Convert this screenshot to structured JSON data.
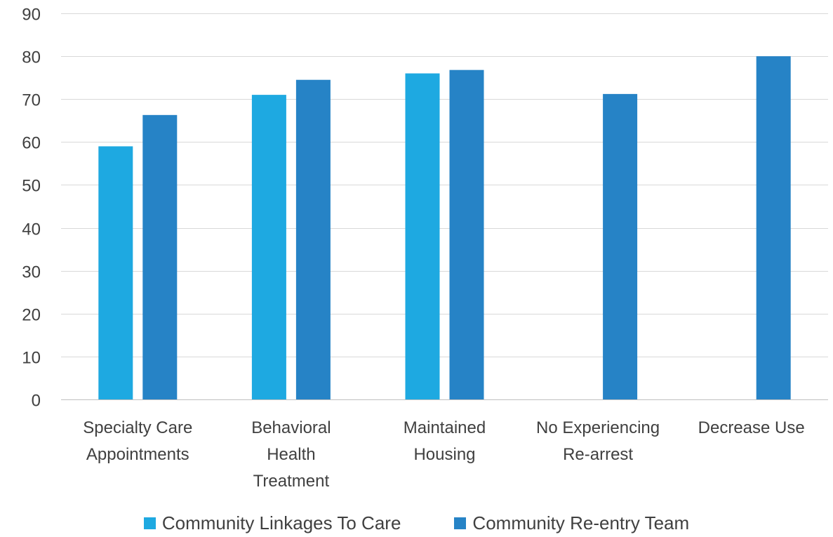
{
  "chart_data": {
    "type": "bar",
    "title": "",
    "xlabel": "",
    "ylabel": "",
    "ylim": [
      0,
      90
    ],
    "yticks": [
      0,
      10,
      20,
      30,
      40,
      50,
      60,
      70,
      80,
      90
    ],
    "grid": true,
    "legend_position": "bottom",
    "categories": [
      [
        "Specialty Care",
        "Appointments"
      ],
      [
        "Behavioral",
        "Health",
        "Treatment"
      ],
      [
        "Maintained",
        "Housing"
      ],
      [
        "No Experiencing",
        "Re-arrest"
      ],
      [
        "Decrease Use"
      ]
    ],
    "series": [
      {
        "name": "Community Linkages To Care",
        "color": "#1ea9e1",
        "values": [
          59,
          71,
          76,
          null,
          null
        ]
      },
      {
        "name": "Community Re-entry Team",
        "color": "#2683c6",
        "values": [
          66.3,
          74.5,
          76.8,
          71.2,
          80
        ]
      }
    ]
  }
}
